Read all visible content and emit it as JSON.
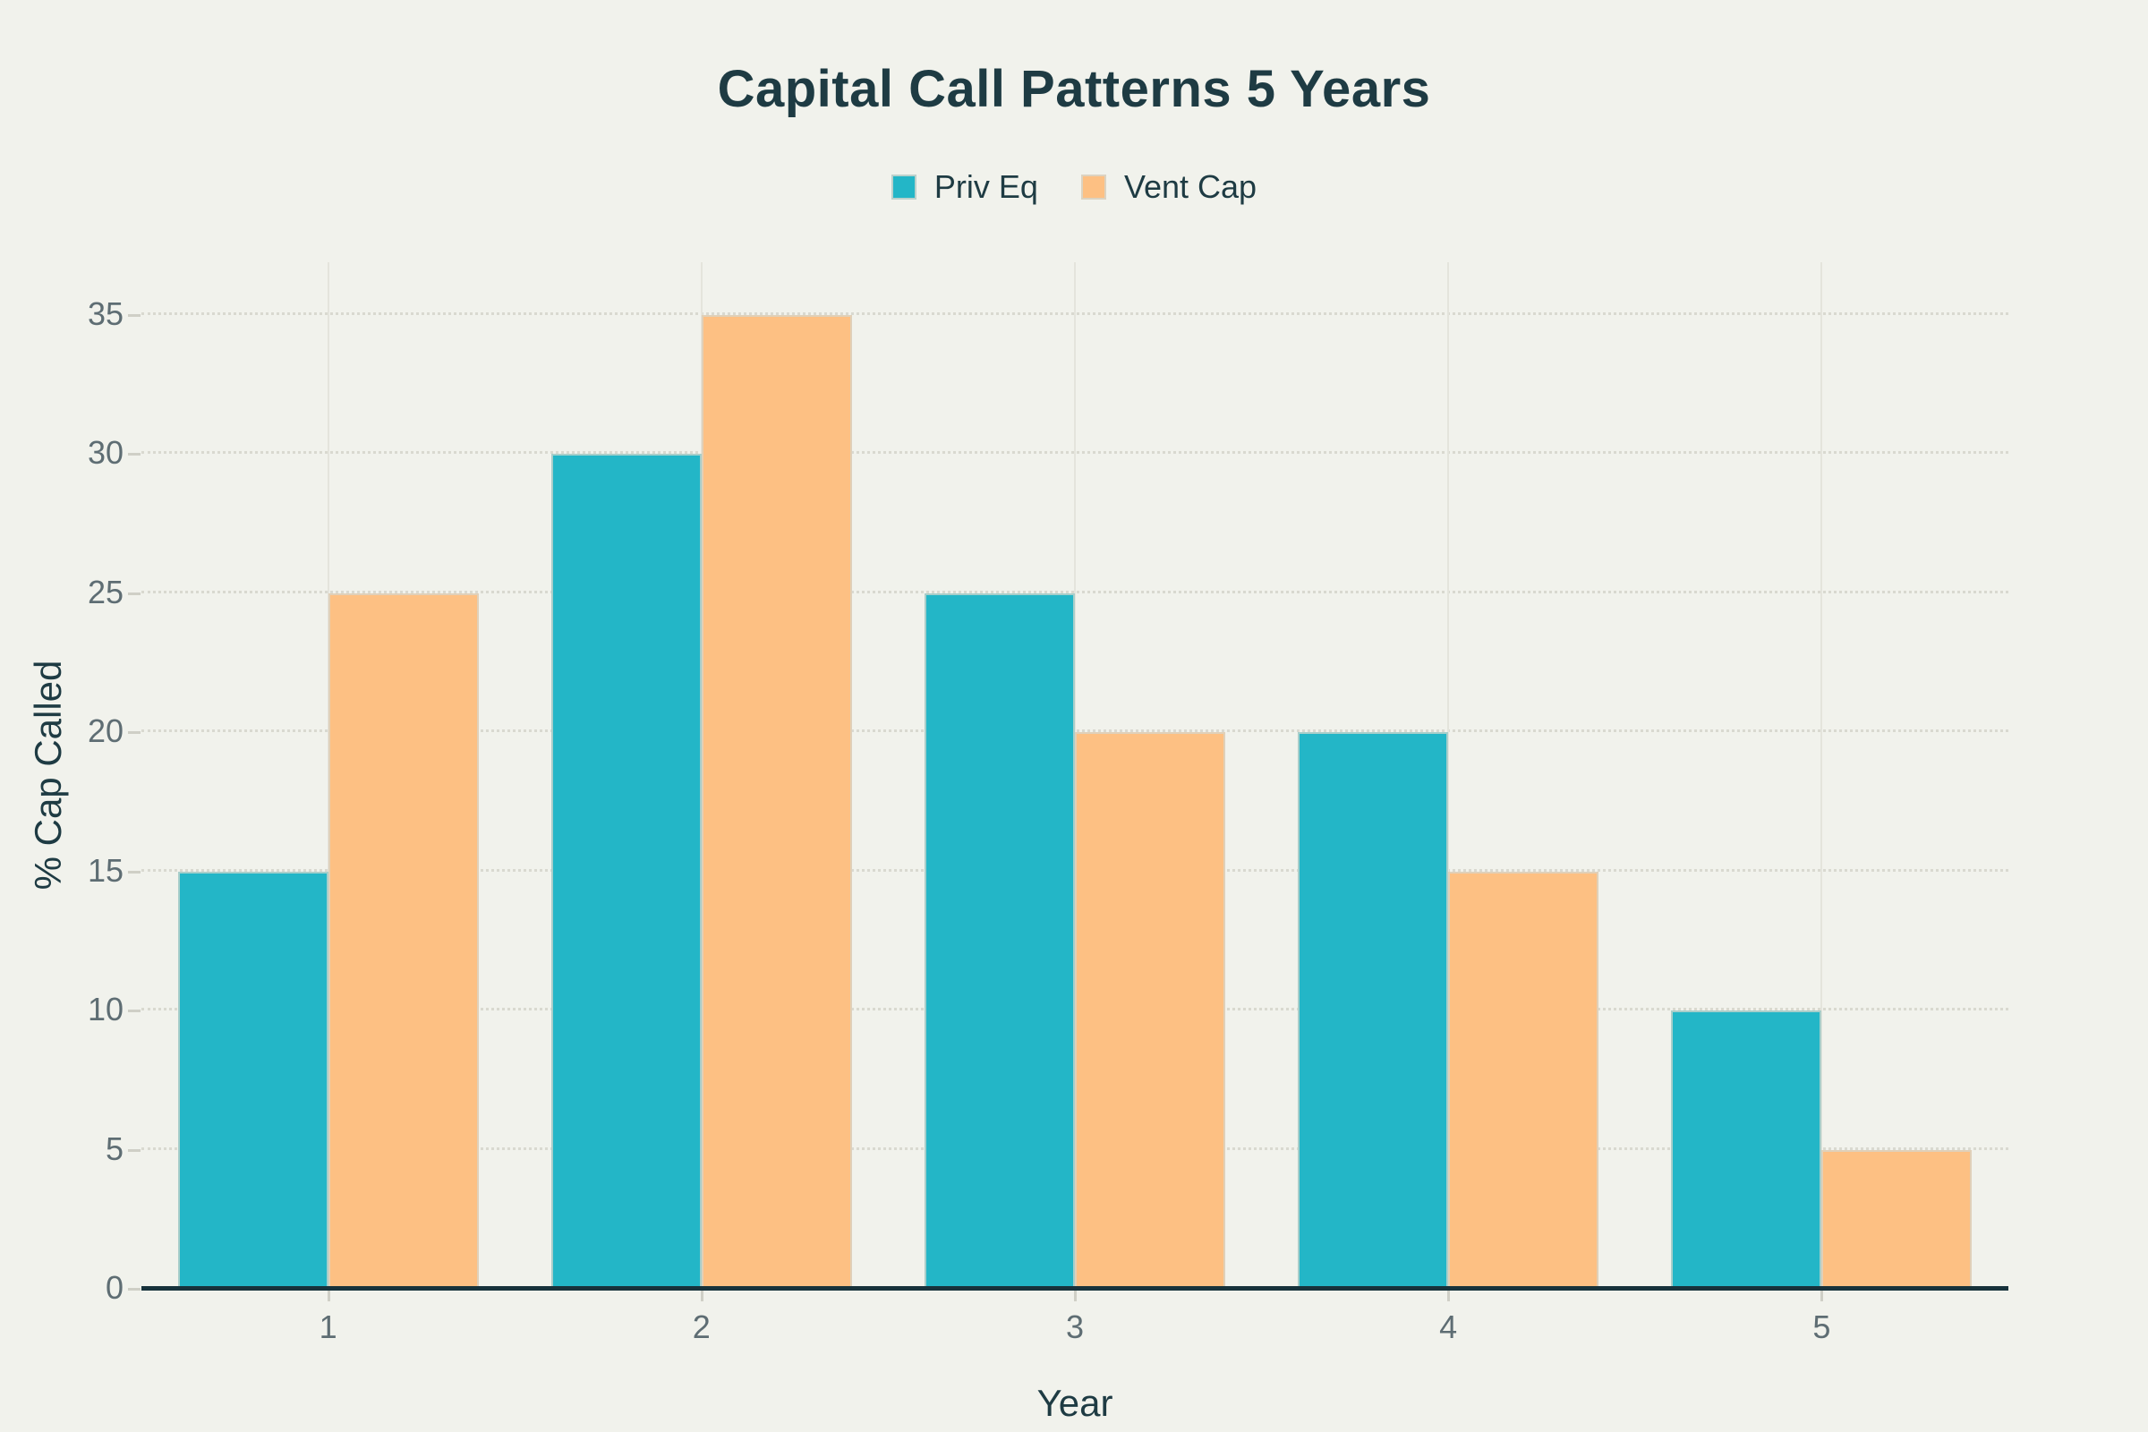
{
  "chart_data": {
    "type": "bar",
    "title": "Capital Call Patterns 5 Years",
    "xlabel": "Year",
    "ylabel": "% Cap Called",
    "categories": [
      "1",
      "2",
      "3",
      "4",
      "5"
    ],
    "series": [
      {
        "name": "Priv Eq",
        "color": "#23b6c7",
        "values": [
          15,
          30,
          25,
          20,
          10
        ]
      },
      {
        "name": "Vent Cap",
        "color": "#fdc083",
        "values": [
          25,
          35,
          20,
          15,
          5
        ]
      }
    ],
    "yticks": [
      0,
      5,
      10,
      15,
      20,
      25,
      30,
      35
    ],
    "ylim": [
      0,
      36.9
    ],
    "grid": true,
    "legend_position": "top-center",
    "bar_mode": "grouped"
  },
  "colors": {
    "background": "#f1f2ec",
    "title_text": "#1e3b43",
    "axis_title_text": "#1e3b43",
    "tick_text": "#5e6d73",
    "axis_line": "#17323b",
    "priv_eq_bar": "#23b6c7",
    "vent_cap_bar": "#fdc083"
  }
}
